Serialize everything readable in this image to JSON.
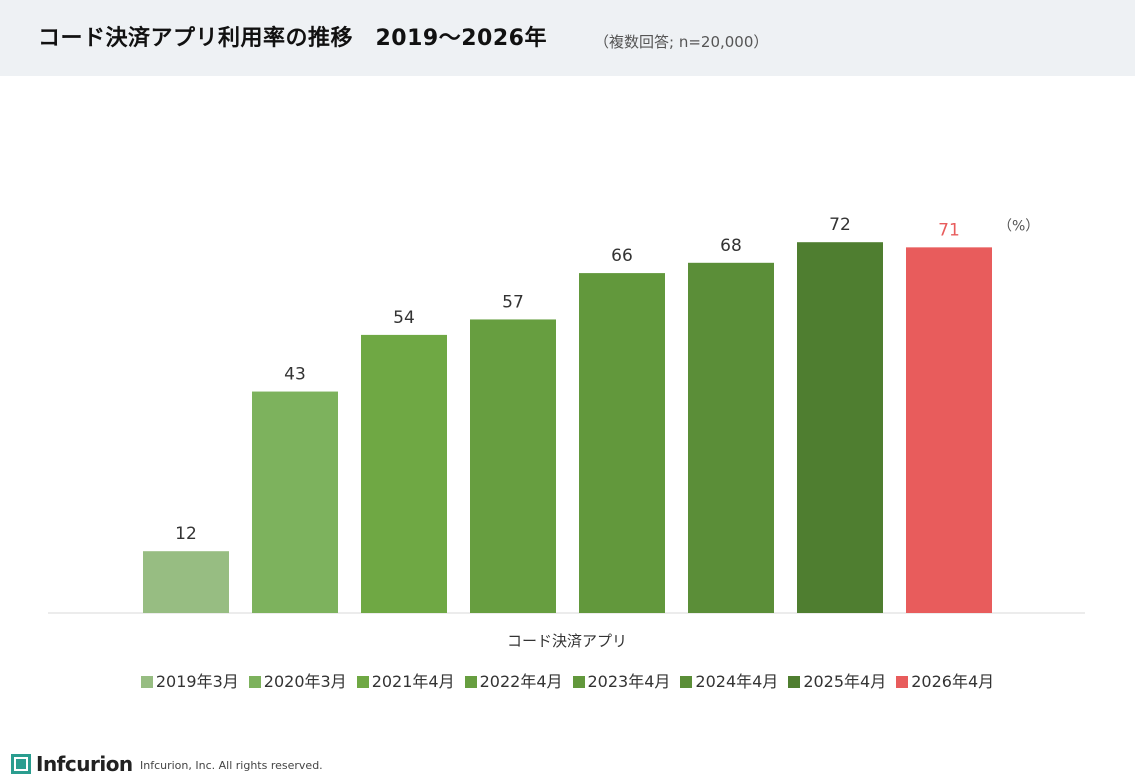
{
  "header": {
    "title": "コード決済アプリ利用率の推移　2019〜2026年",
    "subtitle": "（複数回答; n=20,000）"
  },
  "chart_data": {
    "type": "bar",
    "categories": [
      "コード決済アプリ"
    ],
    "xlabel": "コード決済アプリ",
    "unit_label": "（%）",
    "ylim": [
      0,
      80
    ],
    "legend_position": "bottom",
    "grid": false,
    "series": [
      {
        "name": "2019年3月",
        "values": [
          12
        ],
        "color": "#97bd82"
      },
      {
        "name": "2020年3月",
        "values": [
          43
        ],
        "color": "#7db25d"
      },
      {
        "name": "2021年4月",
        "values": [
          54
        ],
        "color": "#6fa844"
      },
      {
        "name": "2022年4月",
        "values": [
          57
        ],
        "color": "#679e40"
      },
      {
        "name": "2023年4月",
        "values": [
          66
        ],
        "color": "#62983c"
      },
      {
        "name": "2024年4月",
        "values": [
          68
        ],
        "color": "#5b8e38"
      },
      {
        "name": "2025年4月",
        "values": [
          72
        ],
        "color": "#4f7e30"
      },
      {
        "name": "2026年4月",
        "values": [
          71
        ],
        "color": "#e85c5c"
      }
    ],
    "highlight_label_color": "#e85c5c"
  },
  "footer": {
    "logo_text": "Infcurion",
    "copyright": "Infcurion, Inc.  All rights reserved."
  }
}
